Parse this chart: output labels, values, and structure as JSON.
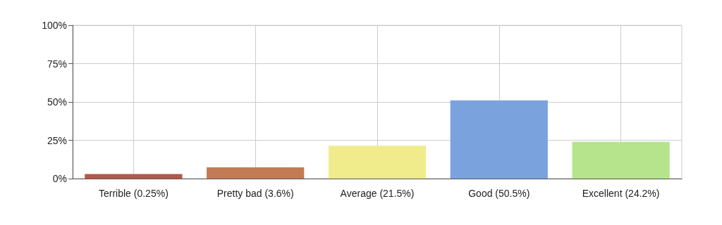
{
  "chart_data": {
    "type": "bar",
    "categories": [
      "Terrible (0.25%)",
      "Pretty bad (3.6%)",
      "Average (21.5%)",
      "Good (50.5%)",
      "Excellent (24.2%)"
    ],
    "values": [
      3,
      7.3,
      21.5,
      51,
      24
    ],
    "colors": [
      "#b5574b",
      "#c27b55",
      "#f0ec8c",
      "#7aa3de",
      "#b5e48c"
    ],
    "ylim": [
      0,
      100
    ],
    "yticks": [
      {
        "value": 0,
        "label": "0%"
      },
      {
        "value": 25,
        "label": "25%"
      },
      {
        "value": 50,
        "label": "50%"
      },
      {
        "value": 75,
        "label": "75%"
      },
      {
        "value": 100,
        "label": "100%"
      }
    ],
    "grid": true
  }
}
